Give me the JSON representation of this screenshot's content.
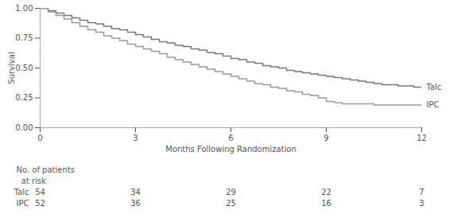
{
  "chart_data": {
    "type": "step",
    "xlabel": "Months Following Randomization",
    "ylabel": "Survival",
    "series": [
      {
        "name": "Talc",
        "color": "#777777",
        "x": [
          0,
          0.25,
          0.5,
          0.75,
          1.0,
          1.25,
          1.5,
          1.75,
          2.0,
          2.25,
          2.5,
          2.75,
          3.0,
          3.25,
          3.5,
          3.75,
          4.0,
          4.25,
          4.5,
          4.75,
          5.0,
          5.25,
          5.5,
          5.75,
          6.0,
          6.25,
          6.5,
          6.75,
          7.0,
          7.25,
          7.5,
          7.75,
          8.0,
          8.25,
          8.5,
          8.75,
          9.0,
          9.25,
          9.5,
          9.75,
          10.0,
          10.25,
          10.5,
          10.75,
          11.0,
          11.25,
          11.5,
          11.75,
          12.0
        ],
        "values": [
          1.0,
          0.98,
          0.96,
          0.94,
          0.92,
          0.9,
          0.88,
          0.87,
          0.85,
          0.83,
          0.82,
          0.8,
          0.78,
          0.76,
          0.74,
          0.72,
          0.71,
          0.69,
          0.68,
          0.66,
          0.65,
          0.63,
          0.62,
          0.6,
          0.58,
          0.57,
          0.55,
          0.54,
          0.52,
          0.51,
          0.5,
          0.48,
          0.47,
          0.46,
          0.45,
          0.44,
          0.43,
          0.42,
          0.41,
          0.4,
          0.39,
          0.38,
          0.37,
          0.36,
          0.36,
          0.35,
          0.35,
          0.34,
          0.34
        ]
      },
      {
        "name": "IPC",
        "color": "#999999",
        "x": [
          0,
          0.25,
          0.5,
          0.75,
          1.0,
          1.25,
          1.5,
          1.75,
          2.0,
          2.25,
          2.5,
          2.75,
          3.0,
          3.25,
          3.5,
          3.75,
          4.0,
          4.25,
          4.5,
          4.75,
          5.0,
          5.25,
          5.5,
          5.75,
          6.0,
          6.25,
          6.5,
          6.75,
          7.0,
          7.25,
          7.5,
          7.75,
          8.0,
          8.25,
          8.5,
          8.75,
          9.0,
          9.25,
          9.5,
          9.75,
          10.0,
          10.25,
          10.5,
          10.75,
          11.0,
          11.25,
          11.5,
          11.75,
          12.0
        ],
        "values": [
          1.0,
          0.97,
          0.94,
          0.91,
          0.88,
          0.85,
          0.82,
          0.8,
          0.77,
          0.75,
          0.73,
          0.7,
          0.68,
          0.66,
          0.64,
          0.62,
          0.59,
          0.57,
          0.55,
          0.53,
          0.51,
          0.49,
          0.47,
          0.45,
          0.43,
          0.41,
          0.39,
          0.37,
          0.36,
          0.34,
          0.33,
          0.31,
          0.3,
          0.28,
          0.27,
          0.25,
          0.22,
          0.21,
          0.2,
          0.2,
          0.2,
          0.2,
          0.19,
          0.19,
          0.19,
          0.19,
          0.19,
          0.19,
          0.19
        ]
      }
    ],
    "xlim": [
      0,
      12
    ],
    "xticks": [
      0,
      3,
      6,
      9,
      12
    ],
    "ylim": [
      0.0,
      1.0
    ],
    "yticks": [
      {
        "value": 0.0,
        "label": "0.00"
      },
      {
        "value": 0.25,
        "label": "0.25"
      },
      {
        "value": 0.5,
        "label": "0.50"
      },
      {
        "value": 0.75,
        "label": "0.75"
      },
      {
        "value": 1.0,
        "label": "1.00"
      }
    ],
    "grid": false,
    "risk_table": {
      "header": [
        "No. of patients",
        "  at risk"
      ],
      "times": [
        0,
        3,
        6,
        9,
        12
      ],
      "rows": [
        {
          "name": "Talc",
          "values": [
            54,
            34,
            29,
            22,
            7
          ]
        },
        {
          "name": "IPC",
          "values": [
            52,
            36,
            25,
            16,
            3
          ]
        }
      ]
    }
  }
}
